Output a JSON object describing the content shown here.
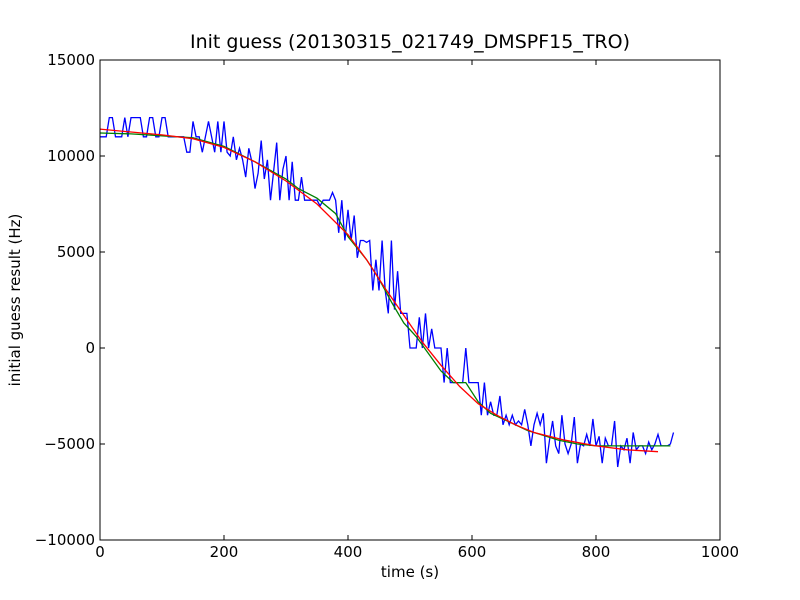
{
  "chart_data": {
    "type": "line",
    "title": "Init guess (20130315_021749_DMSPF15_TRO)",
    "xlabel": "time (s)",
    "ylabel": "initial guess result (Hz)",
    "xlim": [
      0,
      1000
    ],
    "ylim": [
      -10000,
      15000
    ],
    "xticks": [
      0,
      200,
      400,
      600,
      800,
      1000
    ],
    "yticks": [
      -10000,
      -5000,
      0,
      5000,
      10000,
      15000
    ],
    "grid": false,
    "legend": "none",
    "series": [
      {
        "color": "#0000ff",
        "points": [
          [
            0,
            11000
          ],
          [
            5,
            11000
          ],
          [
            10,
            11000
          ],
          [
            15,
            12000
          ],
          [
            20,
            12000
          ],
          [
            25,
            11000
          ],
          [
            30,
            11000
          ],
          [
            35,
            11000
          ],
          [
            40,
            12000
          ],
          [
            45,
            11000
          ],
          [
            50,
            12000
          ],
          [
            55,
            12000
          ],
          [
            60,
            12000
          ],
          [
            65,
            12000
          ],
          [
            70,
            11000
          ],
          [
            75,
            11000
          ],
          [
            80,
            12000
          ],
          [
            85,
            12000
          ],
          [
            90,
            11000
          ],
          [
            95,
            11000
          ],
          [
            100,
            12000
          ],
          [
            105,
            12000
          ],
          [
            110,
            11000
          ],
          [
            115,
            11000
          ],
          [
            120,
            11000
          ],
          [
            125,
            11000
          ],
          [
            130,
            11000
          ],
          [
            135,
            11000
          ],
          [
            140,
            10200
          ],
          [
            145,
            10200
          ],
          [
            150,
            11800
          ],
          [
            155,
            11000
          ],
          [
            160,
            11000
          ],
          [
            165,
            10200
          ],
          [
            170,
            11000
          ],
          [
            175,
            11800
          ],
          [
            180,
            11000
          ],
          [
            185,
            10200
          ],
          [
            190,
            11800
          ],
          [
            195,
            10200
          ],
          [
            200,
            11800
          ],
          [
            205,
            10200
          ],
          [
            210,
            10000
          ],
          [
            215,
            11000
          ],
          [
            220,
            9800
          ],
          [
            225,
            10400
          ],
          [
            230,
            9800
          ],
          [
            235,
            8900
          ],
          [
            240,
            10400
          ],
          [
            245,
            9700
          ],
          [
            250,
            8300
          ],
          [
            255,
            9100
          ],
          [
            260,
            10800
          ],
          [
            265,
            8800
          ],
          [
            270,
            9800
          ],
          [
            275,
            7700
          ],
          [
            280,
            9200
          ],
          [
            285,
            10700
          ],
          [
            290,
            7700
          ],
          [
            295,
            9300
          ],
          [
            300,
            10000
          ],
          [
            305,
            7700
          ],
          [
            310,
            9700
          ],
          [
            315,
            7700
          ],
          [
            320,
            7700
          ],
          [
            325,
            8900
          ],
          [
            330,
            7700
          ],
          [
            335,
            7700
          ],
          [
            340,
            7700
          ],
          [
            345,
            7700
          ],
          [
            350,
            7700
          ],
          [
            355,
            7400
          ],
          [
            360,
            7700
          ],
          [
            365,
            7700
          ],
          [
            370,
            7700
          ],
          [
            375,
            8100
          ],
          [
            380,
            7700
          ],
          [
            385,
            6000
          ],
          [
            390,
            7700
          ],
          [
            395,
            5600
          ],
          [
            400,
            7200
          ],
          [
            405,
            5600
          ],
          [
            410,
            6900
          ],
          [
            415,
            4700
          ],
          [
            420,
            5600
          ],
          [
            425,
            5600
          ],
          [
            430,
            5500
          ],
          [
            435,
            5600
          ],
          [
            440,
            3000
          ],
          [
            445,
            4600
          ],
          [
            450,
            3000
          ],
          [
            455,
            5600
          ],
          [
            460,
            3000
          ],
          [
            465,
            1800
          ],
          [
            470,
            5600
          ],
          [
            475,
            2000
          ],
          [
            480,
            4000
          ],
          [
            485,
            1800
          ],
          [
            490,
            1800
          ],
          [
            495,
            1800
          ],
          [
            500,
            0
          ],
          [
            505,
            0
          ],
          [
            510,
            0
          ],
          [
            515,
            1600
          ],
          [
            520,
            0
          ],
          [
            525,
            1800
          ],
          [
            530,
            0
          ],
          [
            535,
            1000
          ],
          [
            540,
            0
          ],
          [
            545,
            0
          ],
          [
            550,
            0
          ],
          [
            555,
            -1800
          ],
          [
            560,
            0
          ],
          [
            565,
            -1800
          ],
          [
            570,
            -1800
          ],
          [
            575,
            -1800
          ],
          [
            580,
            -1800
          ],
          [
            585,
            -1800
          ],
          [
            590,
            0
          ],
          [
            595,
            -1800
          ],
          [
            600,
            -1800
          ],
          [
            605,
            -1800
          ],
          [
            610,
            -1800
          ],
          [
            615,
            -3500
          ],
          [
            620,
            -1800
          ],
          [
            625,
            -3500
          ],
          [
            630,
            -2800
          ],
          [
            635,
            -3500
          ],
          [
            640,
            -3500
          ],
          [
            645,
            -2500
          ],
          [
            650,
            -4000
          ],
          [
            655,
            -3500
          ],
          [
            660,
            -4000
          ],
          [
            665,
            -3500
          ],
          [
            670,
            -4000
          ],
          [
            675,
            -3800
          ],
          [
            680,
            -4000
          ],
          [
            685,
            -3200
          ],
          [
            690,
            -4000
          ],
          [
            695,
            -5100
          ],
          [
            700,
            -4000
          ],
          [
            705,
            -3400
          ],
          [
            710,
            -4000
          ],
          [
            715,
            -3400
          ],
          [
            720,
            -6000
          ],
          [
            725,
            -4800
          ],
          [
            730,
            -3800
          ],
          [
            735,
            -5100
          ],
          [
            740,
            -5500
          ],
          [
            745,
            -3500
          ],
          [
            750,
            -5000
          ],
          [
            755,
            -5500
          ],
          [
            760,
            -5000
          ],
          [
            765,
            -3600
          ],
          [
            770,
            -6000
          ],
          [
            775,
            -5000
          ],
          [
            780,
            -5100
          ],
          [
            785,
            -4500
          ],
          [
            790,
            -5100
          ],
          [
            795,
            -3700
          ],
          [
            800,
            -5100
          ],
          [
            805,
            -4600
          ],
          [
            810,
            -6000
          ],
          [
            815,
            -4700
          ],
          [
            820,
            -5100
          ],
          [
            825,
            -5100
          ],
          [
            830,
            -3800
          ],
          [
            835,
            -6200
          ],
          [
            840,
            -5100
          ],
          [
            845,
            -5300
          ],
          [
            850,
            -4700
          ],
          [
            855,
            -6000
          ],
          [
            860,
            -4400
          ],
          [
            865,
            -5300
          ],
          [
            870,
            -5100
          ],
          [
            875,
            -5100
          ],
          [
            880,
            -5500
          ],
          [
            885,
            -4900
          ],
          [
            890,
            -5300
          ],
          [
            895,
            -5000
          ],
          [
            900,
            -4500
          ],
          [
            905,
            -5100
          ],
          [
            910,
            -5100
          ],
          [
            915,
            -5100
          ],
          [
            920,
            -5000
          ],
          [
            925,
            -4400
          ]
        ]
      },
      {
        "color": "#008000",
        "points": [
          [
            0,
            11200
          ],
          [
            50,
            11150
          ],
          [
            100,
            11050
          ],
          [
            150,
            10950
          ],
          [
            200,
            10500
          ],
          [
            250,
            9700
          ],
          [
            300,
            8800
          ],
          [
            320,
            8300
          ],
          [
            350,
            7800
          ],
          [
            380,
            7000
          ],
          [
            400,
            5800
          ],
          [
            430,
            4600
          ],
          [
            450,
            3600
          ],
          [
            470,
            2400
          ],
          [
            490,
            1300
          ],
          [
            510,
            600
          ],
          [
            530,
            -300
          ],
          [
            550,
            -1200
          ],
          [
            570,
            -1800
          ],
          [
            590,
            -1800
          ],
          [
            610,
            -2800
          ],
          [
            630,
            -3400
          ],
          [
            650,
            -3700
          ],
          [
            670,
            -4000
          ],
          [
            690,
            -4300
          ],
          [
            710,
            -4500
          ],
          [
            740,
            -4800
          ],
          [
            770,
            -5000
          ],
          [
            800,
            -5100
          ],
          [
            850,
            -5100
          ],
          [
            900,
            -5100
          ],
          [
            920,
            -5100
          ]
        ]
      },
      {
        "color": "#ff0000",
        "points": [
          [
            0,
            11400
          ],
          [
            50,
            11250
          ],
          [
            100,
            11100
          ],
          [
            150,
            10900
          ],
          [
            200,
            10450
          ],
          [
            250,
            9700
          ],
          [
            300,
            8700
          ],
          [
            350,
            7500
          ],
          [
            400,
            5900
          ],
          [
            430,
            4600
          ],
          [
            460,
            3100
          ],
          [
            490,
            1700
          ],
          [
            520,
            300
          ],
          [
            550,
            -900
          ],
          [
            580,
            -2000
          ],
          [
            610,
            -2900
          ],
          [
            640,
            -3500
          ],
          [
            670,
            -4000
          ],
          [
            700,
            -4400
          ],
          [
            750,
            -4800
          ],
          [
            800,
            -5100
          ],
          [
            850,
            -5300
          ],
          [
            900,
            -5400
          ]
        ]
      }
    ]
  }
}
